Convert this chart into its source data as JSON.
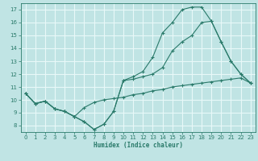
{
  "xlabel": "Humidex (Indice chaleur)",
  "xlim": [
    -0.5,
    23.5
  ],
  "ylim": [
    7.5,
    17.5
  ],
  "yticks": [
    8,
    9,
    10,
    11,
    12,
    13,
    14,
    15,
    16,
    17
  ],
  "xticks": [
    0,
    1,
    2,
    3,
    4,
    5,
    6,
    7,
    8,
    9,
    10,
    11,
    12,
    13,
    14,
    15,
    16,
    17,
    18,
    19,
    20,
    21,
    22,
    23
  ],
  "bg_color": "#c0e4e4",
  "grid_color": "#e8f8f8",
  "line_color": "#2a7a6a",
  "line1_x": [
    0,
    1,
    2,
    3,
    4,
    5,
    6,
    7,
    8,
    9,
    10,
    11,
    12,
    13,
    14,
    15,
    16,
    17,
    18,
    19,
    20,
    21,
    22,
    23
  ],
  "line1_y": [
    10.5,
    9.7,
    9.9,
    9.3,
    9.1,
    8.7,
    8.3,
    7.7,
    8.1,
    9.1,
    11.5,
    11.8,
    12.2,
    13.3,
    15.2,
    16.0,
    17.0,
    17.2,
    17.2,
    16.1,
    14.5,
    13.0,
    12.0,
    11.3
  ],
  "line2_x": [
    0,
    1,
    2,
    3,
    4,
    5,
    6,
    7,
    8,
    9,
    10,
    11,
    12,
    13,
    14,
    15,
    16,
    17,
    18,
    19,
    20,
    21,
    22,
    23
  ],
  "line2_y": [
    10.5,
    9.7,
    9.9,
    9.3,
    9.1,
    8.7,
    9.4,
    9.8,
    10.0,
    10.1,
    10.2,
    10.4,
    10.5,
    10.7,
    10.8,
    11.0,
    11.1,
    11.2,
    11.3,
    11.4,
    11.5,
    11.6,
    11.7,
    11.3
  ],
  "line3_x": [
    0,
    1,
    2,
    3,
    4,
    5,
    6,
    7,
    8,
    9,
    10,
    11,
    12,
    13,
    14,
    15,
    16,
    17,
    18,
    19,
    20,
    21,
    22,
    23
  ],
  "line3_y": [
    10.5,
    9.7,
    9.9,
    9.3,
    9.1,
    8.7,
    8.3,
    7.7,
    8.1,
    9.1,
    11.5,
    11.6,
    11.8,
    12.0,
    12.5,
    13.8,
    14.5,
    15.0,
    16.0,
    16.1,
    14.5,
    13.0,
    12.0,
    11.3
  ]
}
